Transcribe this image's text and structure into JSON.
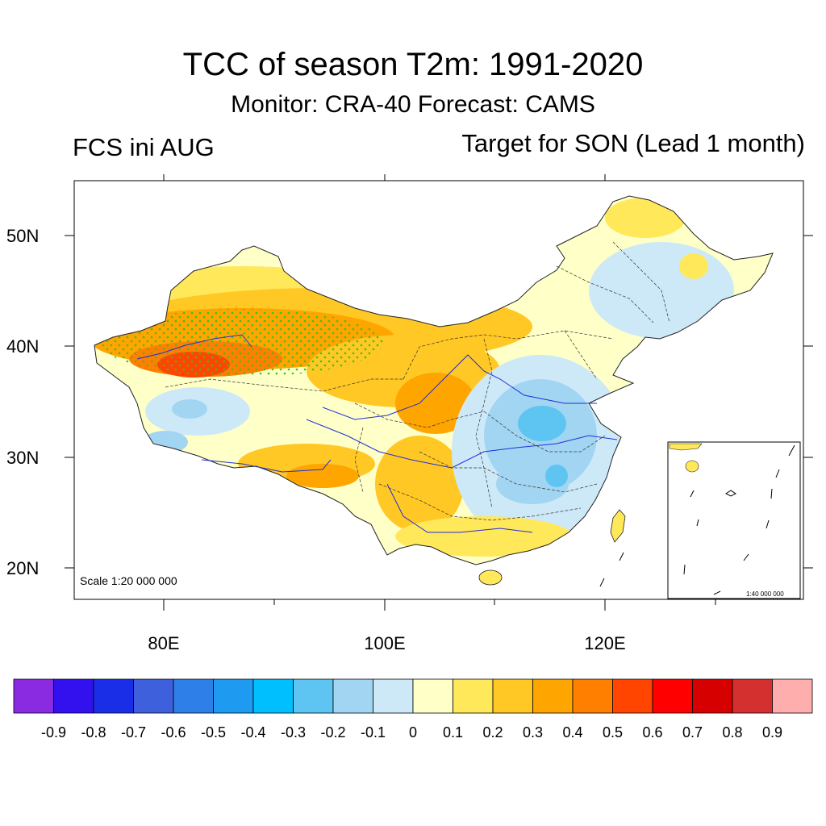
{
  "header": {
    "title": "TCC of season T2m: 1991-2020",
    "subtitle": "Monitor: CRA-40   Forecast: CAMS",
    "left_label": "FCS ini AUG",
    "right_label": "Target for SON (Lead 1 month)"
  },
  "map": {
    "scale_label": "Scale 1:20 000 000",
    "inset_scale_label": "1:40 000 000",
    "lat_ticks": [
      "50N",
      "40N",
      "30N",
      "20N"
    ],
    "lon_ticks": [
      "80E",
      "100E",
      "120E"
    ]
  },
  "colorbar": {
    "colors": [
      "#8a2be2",
      "#3311ee",
      "#1a2ee8",
      "#3f60dc",
      "#2f7fe8",
      "#1e9bf0",
      "#00bfff",
      "#5ec4f2",
      "#a2d5f2",
      "#cde9f8",
      "#ffffc8",
      "#ffe85a",
      "#ffc825",
      "#ffa500",
      "#ff7f00",
      "#ff4500",
      "#ff0000",
      "#d70000",
      "#d43030",
      "#ffaeae"
    ],
    "labels": [
      "-0.9",
      "-0.8",
      "-0.7",
      "-0.6",
      "-0.5",
      "-0.4",
      "-0.3",
      "-0.2",
      "-0.1",
      "0",
      "0.1",
      "0.2",
      "0.3",
      "0.4",
      "0.5",
      "0.6",
      "0.7",
      "0.8",
      "0.9"
    ]
  },
  "colors": {
    "river": "#1f2fd8",
    "boundary": "#333333",
    "stipple": "#22cc22"
  }
}
